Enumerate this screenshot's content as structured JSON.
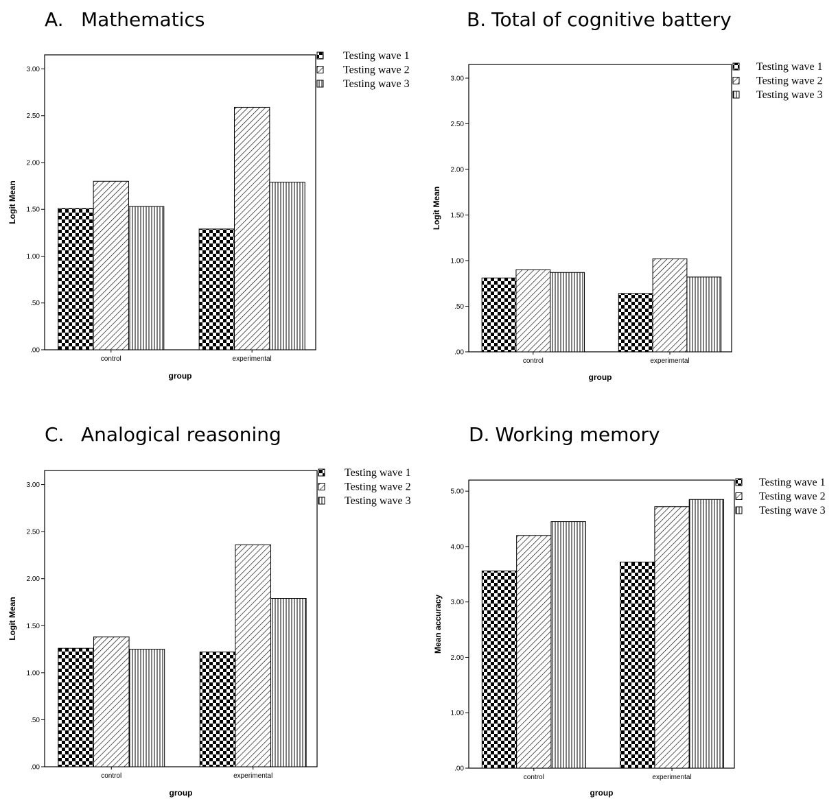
{
  "colors": {
    "ink": "#000000",
    "background": "#ffffff"
  },
  "chart_data": [
    {
      "panel_letter": "A.",
      "type": "bar",
      "title": "Mathematics",
      "xlabel": "group",
      "ylabel": "Logit Mean",
      "categories": [
        "control",
        "experimental"
      ],
      "ylim": [
        0,
        3.15
      ],
      "yticks": [
        ".00",
        ".50",
        "1.00",
        "1.50",
        "2.00",
        "2.50",
        "3.00"
      ],
      "series": [
        {
          "name": "Testing wave 1",
          "pattern": "checker",
          "values": [
            1.51,
            1.29
          ]
        },
        {
          "name": "Testing wave 2",
          "pattern": "diagonal",
          "values": [
            1.8,
            2.59
          ]
        },
        {
          "name": "Testing wave 3",
          "pattern": "vertical",
          "values": [
            1.53,
            1.79
          ]
        }
      ],
      "legend_position": "top-right outside",
      "grid": false
    },
    {
      "panel_letter": "B.",
      "type": "bar",
      "title": "Total of cognitive battery",
      "xlabel": "group",
      "ylabel": "Logit Mean",
      "categories": [
        "control",
        "experimental"
      ],
      "ylim": [
        0,
        3.15
      ],
      "yticks": [
        ".00",
        ".50",
        "1.00",
        "1.50",
        "2.00",
        "2.50",
        "3.00"
      ],
      "series": [
        {
          "name": "Testing wave 1",
          "pattern": "checker",
          "values": [
            0.81,
            0.64
          ]
        },
        {
          "name": "Testing wave 2",
          "pattern": "diagonal",
          "values": [
            0.9,
            1.02
          ]
        },
        {
          "name": "Testing wave 3",
          "pattern": "vertical",
          "values": [
            0.87,
            0.82
          ]
        }
      ],
      "legend_position": "top-right outside",
      "grid": false
    },
    {
      "panel_letter": "C.",
      "type": "bar",
      "title": "Analogical reasoning",
      "xlabel": "group",
      "ylabel": "Logit Mean",
      "categories": [
        "control",
        "experimental"
      ],
      "ylim": [
        0,
        3.15
      ],
      "yticks": [
        ".00",
        ".50",
        "1.00",
        "1.50",
        "2.00",
        "2.50",
        "3.00"
      ],
      "series": [
        {
          "name": "Testing wave 1",
          "pattern": "checker",
          "values": [
            1.26,
            1.22
          ]
        },
        {
          "name": "Testing wave 2",
          "pattern": "diagonal",
          "values": [
            1.38,
            2.36
          ]
        },
        {
          "name": "Testing wave 3",
          "pattern": "vertical",
          "values": [
            1.25,
            1.79
          ]
        }
      ],
      "legend_position": "top-right outside",
      "grid": false
    },
    {
      "panel_letter": "D.",
      "type": "bar",
      "title": "Working memory",
      "xlabel": "group",
      "ylabel": "Mean accuracy",
      "categories": [
        "control",
        "experimental"
      ],
      "ylim": [
        0,
        5.2
      ],
      "yticks": [
        ".00",
        "1.00",
        "2.00",
        "3.00",
        "4.00",
        "5.00"
      ],
      "series": [
        {
          "name": "Testing wave 1",
          "pattern": "checker",
          "values": [
            3.56,
            3.72
          ]
        },
        {
          "name": "Testing wave 2",
          "pattern": "diagonal",
          "values": [
            4.2,
            4.72
          ]
        },
        {
          "name": "Testing wave 3",
          "pattern": "vertical",
          "values": [
            4.45,
            4.85
          ]
        }
      ],
      "legend_position": "top-right outside",
      "grid": false
    }
  ]
}
